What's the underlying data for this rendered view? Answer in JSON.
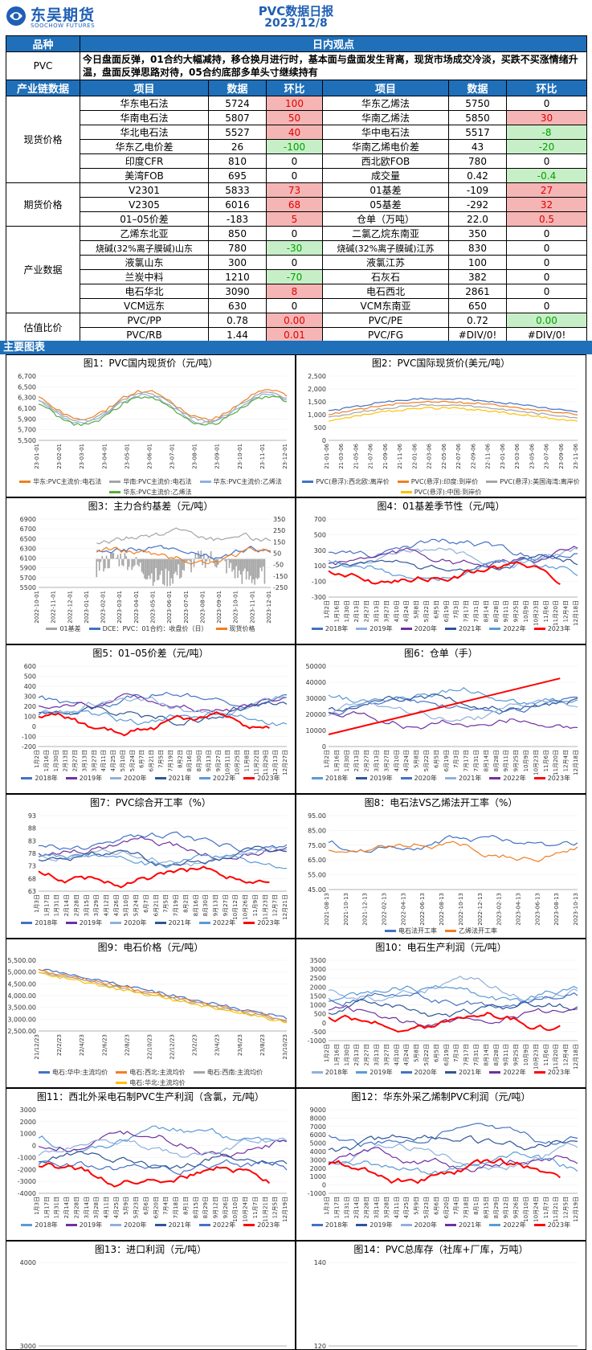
{
  "header": {
    "logo_cn": "东吴期货",
    "logo_en": "SOOCHOW FUTURES",
    "title": "PVC数据日报",
    "date": "2023/12/8"
  },
  "view": {
    "col1": "品种",
    "col2": "日内观点",
    "product": "PVC",
    "text": "今日盘面反弹，01合约大幅减持，移仓换月进行时，基本面与盘面发生背离，现货市场成交冷淡，买跌不买涨情绪升温，盘面反弹思路对待，05合约底部多单头寸继续持有"
  },
  "table_header": [
    "产业链数据",
    "项目",
    "数据",
    "环比",
    "项目",
    "数据",
    "环比"
  ],
  "sections": [
    {
      "name": "现货价格",
      "rows": [
        [
          "华东电石法",
          "5724",
          "100",
          "r",
          "华东乙烯法",
          "5750",
          "0",
          ""
        ],
        [
          "华南电石法",
          "5807",
          "50",
          "r",
          "华南乙烯法",
          "5850",
          "30",
          "r"
        ],
        [
          "华北电石法",
          "5527",
          "40",
          "r",
          "华中电石法",
          "5517",
          "-8",
          "g"
        ],
        [
          "华东乙电价差",
          "26",
          "-100",
          "g",
          "华南乙烯电价差",
          "43",
          "-20",
          "g"
        ],
        [
          "印度CFR",
          "810",
          "0",
          "",
          "西北欧FOB",
          "780",
          "0",
          ""
        ],
        [
          "美湾FOB",
          "695",
          "0",
          "",
          "成交量",
          "0.42",
          "-0.4",
          "g"
        ]
      ]
    },
    {
      "name": "期货价格",
      "rows": [
        [
          "V2301",
          "5833",
          "73",
          "r",
          "01基差",
          "-109",
          "27",
          "r"
        ],
        [
          "V2305",
          "6016",
          "68",
          "r",
          "05基差",
          "-292",
          "32",
          "r"
        ],
        [
          "01–05价差",
          "-183",
          "5",
          "r",
          "仓单（万吨）",
          "22.0",
          "0.5",
          "r"
        ]
      ]
    },
    {
      "name": "产业数据",
      "rows": [
        [
          "乙烯东北亚",
          "850",
          "0",
          "",
          "二氯乙烷东南亚",
          "350",
          "0",
          ""
        ],
        [
          "烧碱(32%离子膜碱)山东",
          "780",
          "-30",
          "g",
          "烧碱(32%离子膜碱)江苏",
          "830",
          "0",
          ""
        ],
        [
          "液氯山东",
          "300",
          "0",
          "",
          "液氯江苏",
          "100",
          "0",
          ""
        ],
        [
          "兰炭中料",
          "1210",
          "-70",
          "g",
          "石灰石",
          "382",
          "0",
          ""
        ],
        [
          "电石华北",
          "3090",
          "8",
          "r",
          "电石西北",
          "2861",
          "0",
          ""
        ],
        [
          "VCM远东",
          "630",
          "0",
          "",
          "VCM东南亚",
          "650",
          "0",
          ""
        ]
      ]
    },
    {
      "name": "估值比价",
      "rows": [
        [
          "PVC/PP",
          "0.78",
          "0.00",
          "r",
          "PVC/PE",
          "0.72",
          "0.00",
          "g"
        ],
        [
          "PVC/RB",
          "1.44",
          "0.01",
          "r",
          "PVC/FG",
          "#DIV/0!",
          "#DIV/0!",
          ""
        ]
      ]
    }
  ],
  "section_bar": "主要图表",
  "colors": {
    "brand": "#1f5fb4",
    "bar": "#1f6fb9",
    "up": "#e00000",
    "down": "#00a000"
  },
  "charts": [
    {
      "title": "图1：PVC国内现货价（元/吨）",
      "yticks": [
        "6,700",
        "6,500",
        "6,300",
        "6,100",
        "5,900",
        "5,700",
        "5,500"
      ],
      "xticks": [
        "23-01-01",
        "23-02-01",
        "23-03-01",
        "23-04-01",
        "23-05-01",
        "23-06-01",
        "23-07-01",
        "23-08-01",
        "23-09-01",
        "23-10-01",
        "23-11-01",
        "23-12-01"
      ],
      "legend": [
        {
          "name": "华东:PVC主流价:电石法",
          "color": "#f07f22"
        },
        {
          "name": "华南:PVC主流价:电石法",
          "color": "#a5a5a5"
        },
        {
          "name": "华东:PVC主流价:乙烯法",
          "color": "#8fb0dc"
        },
        {
          "name": "华东:PVC主流价:乙烯法",
          "color": "#5aab3c"
        }
      ]
    },
    {
      "title": "图2：PVC国际现货价(美元/吨）",
      "yticks": [
        "2,500",
        "2,000",
        "1,500",
        "1,000",
        "500",
        "0"
      ],
      "xticks": [
        "21-01-06",
        "21-03-06",
        "21-05-06",
        "21-07-06",
        "21-09-06",
        "21-11-06",
        "22-01-06",
        "22-03-06",
        "22-05-06",
        "22-07-06",
        "22-09-06",
        "22-11-06",
        "23-01-06",
        "23-03-06",
        "23-05-06",
        "23-07-06",
        "23-09-06",
        "23-11-06"
      ],
      "legend": [
        {
          "name": "PVC(悬浮):西北欧:离岸价",
          "color": "#4472c4"
        },
        {
          "name": "PVC(悬浮):印度:到岸价",
          "color": "#f07f22"
        },
        {
          "name": "PVC(悬浮):美国海湾:离岸价",
          "color": "#a5a5a5"
        },
        {
          "name": "PVC(悬浮):中国:到岸价",
          "color": "#ffc000"
        }
      ]
    },
    {
      "title": "图3：主力合约基差（元/吨）",
      "yticks": [
        "6900",
        "6700",
        "6500",
        "6300",
        "6100",
        "5900",
        "5700",
        "5500"
      ],
      "yticks2": [
        "350",
        "250",
        "150",
        "50",
        "-50",
        "-150",
        "-250"
      ],
      "xticks": [
        "2022-10-01",
        "2022-11-01",
        "2022-12-01",
        "2023-01-01",
        "2023-02-01",
        "2023-03-01",
        "2023-04-01",
        "2023-05-01",
        "2023-06-01",
        "2023-07-01",
        "2023-08-01",
        "2023-09-01",
        "2023-10-01",
        "2023-11-01",
        "2023-12-01"
      ],
      "legend": [
        {
          "name": "01基差",
          "color": "#a5a5a5"
        },
        {
          "name": "DCE：PVC：01合约：收盘价（日）",
          "color": "#4472c4"
        },
        {
          "name": "现货价格",
          "color": "#f07f22"
        }
      ]
    },
    {
      "title": "图4：01基差季节性（元/吨）",
      "yticks": [
        "700",
        "500",
        "300",
        "100",
        "-100",
        "-300"
      ],
      "xticks": [
        "1月2日",
        "1月16日",
        "1月30日",
        "2月13日",
        "2月27日",
        "3月13日",
        "3月27日",
        "4月10日",
        "4月24日",
        "5月8日",
        "5月22日",
        "6月5日",
        "6月19日",
        "7月3日",
        "7月17日",
        "7月31日",
        "8月14日",
        "8月28日",
        "9月11日",
        "9月25日",
        "10月9日",
        "10月23日",
        "11月6日",
        "11月20日",
        "12月4日",
        "12月18日"
      ],
      "legend": [
        {
          "name": "2018年",
          "color": "#4472c4"
        },
        {
          "name": "2019年",
          "color": "#8fb0dc"
        },
        {
          "name": "2020年",
          "color": "#7030a0"
        },
        {
          "name": "2021年",
          "color": "#2f5597"
        },
        {
          "name": "2022年",
          "color": "#5b9bd5"
        },
        {
          "name": "2023年",
          "color": "#ff0000"
        }
      ]
    },
    {
      "title": "图5：01–05价差（元/吨）",
      "yticks": [
        "600",
        "500",
        "400",
        "300",
        "200",
        "100",
        "0",
        "-100",
        "-200"
      ],
      "xticks": [
        "1月2日",
        "1月16日",
        "1月30日",
        "2月13日",
        "2月27日",
        "3月13日",
        "3月27日",
        "4月11日",
        "4月25日",
        "5月10日",
        "5月24日",
        "6月7日",
        "6月21日",
        "7月5日",
        "7月19日",
        "8月2日",
        "8月16日",
        "8月30日",
        "9月13日",
        "9月27日",
        "10月11日",
        "10月25日",
        "11月8日",
        "11月22日",
        "11月29日",
        "12月13日",
        "12月27日"
      ],
      "legend": [
        {
          "name": "2018年",
          "color": "#4472c4"
        },
        {
          "name": "2019年",
          "color": "#7030a0"
        },
        {
          "name": "2020年",
          "color": "#8fb0dc"
        },
        {
          "name": "2021年",
          "color": "#2f5597"
        },
        {
          "name": "2022年",
          "color": "#5b9bd5"
        },
        {
          "name": "2023年",
          "color": "#ff0000"
        }
      ]
    },
    {
      "title": "图6：仓单（手）",
      "yticks": [
        "50000",
        "40000",
        "30000",
        "20000",
        "10000",
        "0"
      ],
      "xticks": [
        "1月2日",
        "1月16日",
        "1月30日",
        "2月13日",
        "2月27日",
        "3月13日",
        "3月27日",
        "4月10日",
        "4月24日",
        "5月8日",
        "5月22日",
        "6月5日",
        "6月19日",
        "7月3日",
        "7月17日",
        "7月31日",
        "8月14日",
        "8月28日",
        "9月11日",
        "9月25日",
        "10月9日",
        "10月23日",
        "11月6日",
        "11月20日",
        "12月4日",
        "12月18日"
      ],
      "legend": [
        {
          "name": "2018年",
          "color": "#5b9bd5"
        },
        {
          "name": "2019年",
          "color": "#2f5597"
        },
        {
          "name": "2020年",
          "color": "#4472c4"
        },
        {
          "name": "2021年",
          "color": "#8fb0dc"
        },
        {
          "name": "2022年",
          "color": "#7030a0"
        },
        {
          "name": "2023年",
          "color": "#ff0000"
        }
      ]
    },
    {
      "title": "图7：PVC综合开工率（%）",
      "yticks": [
        "93",
        "88",
        "83",
        "78",
        "73",
        "68",
        "63"
      ],
      "xticks": [
        "1月3日",
        "1月17日",
        "1月31日",
        "2月14日",
        "2月28日",
        "3月15日",
        "3月29日",
        "4月12日",
        "4月26日",
        "5月10日",
        "5月24日",
        "6月7日",
        "6月21日",
        "7月5日",
        "7月19日",
        "8月2日",
        "8月16日",
        "8月30日",
        "9月13日",
        "9月27日",
        "10月12日",
        "10月26日",
        "11月9日",
        "11月23日",
        "12月7日",
        "12月21日"
      ],
      "legend": [
        {
          "name": "2018年",
          "color": "#4472c4"
        },
        {
          "name": "2019年",
          "color": "#7030a0"
        },
        {
          "name": "2020年",
          "color": "#8fb0dc"
        },
        {
          "name": "2021年",
          "color": "#2f5597"
        },
        {
          "name": "2022年",
          "color": "#5b9bd5"
        },
        {
          "name": "2023年",
          "color": "#ff0000"
        }
      ]
    },
    {
      "title": "图8：电石法VS乙烯法开工率（%）",
      "yticks": [
        "95.00",
        "85.00",
        "75.00",
        "65.00",
        "55.00",
        "45.00"
      ],
      "xticks": [
        "2021-08-13",
        "2021-10-13",
        "2021-12-13",
        "2022-02-13",
        "2022-04-13",
        "2022-06-13",
        "2022-08-13",
        "2022-10-13",
        "2022-12-13",
        "2023-02-13",
        "2023-04-13",
        "2023-06-13",
        "2023-08-13",
        "2023-10-13"
      ],
      "legend": [
        {
          "name": "电石法开工率",
          "color": "#4472c4"
        },
        {
          "name": "乙烯法开工率",
          "color": "#f07f22"
        }
      ]
    },
    {
      "title": "图9：电石价格（元/吨）",
      "yticks": [
        "5,500.00",
        "5,000.00",
        "4,500.00",
        "4,000.00",
        "3,500.00",
        "3,000.00",
        "2,500.00"
      ],
      "xticks": [
        "21/12/23",
        "22/2/23",
        "22/4/23",
        "22/6/23",
        "22/8/23",
        "22/10/23",
        "22/12/23",
        "23/2/23",
        "23/4/23",
        "23/6/23",
        "23/8/23",
        "23/10/23"
      ],
      "legend": [
        {
          "name": "电石:华中:主流均价",
          "color": "#4472c4"
        },
        {
          "name": "电石:西北:主流均价",
          "color": "#f07f22"
        },
        {
          "name": "电石:西南:主流均价",
          "color": "#a5a5a5"
        },
        {
          "name": "电石:华北:主流均价",
          "color": "#ffc000"
        }
      ]
    },
    {
      "title": "图10：电石生产利润（元/吨）",
      "yticks": [
        "3500",
        "3000",
        "2500",
        "2000",
        "1500",
        "1000",
        "500",
        "0",
        "-500",
        "-1000"
      ],
      "xticks": [
        "1月2日",
        "1月16日",
        "1月30日",
        "2月13日",
        "2月27日",
        "3月13日",
        "3月27日",
        "4月10日",
        "4月24日",
        "5月8日",
        "5月22日",
        "6月5日",
        "6月19日",
        "7月3日",
        "7月17日",
        "7月31日",
        "8月14日",
        "8月28日",
        "9月11日",
        "9月25日",
        "10月9日",
        "10月23日",
        "11月6日",
        "11月20日",
        "12月4日",
        "12月18日"
      ],
      "legend": [
        {
          "name": "2018年",
          "color": "#8fb0dc"
        },
        {
          "name": "2019年",
          "color": "#5b9bd5"
        },
        {
          "name": "2020年",
          "color": "#4472c4"
        },
        {
          "name": "2021年",
          "color": "#2f5597"
        },
        {
          "name": "2022年",
          "color": "#7030a0"
        },
        {
          "name": "2023年",
          "color": "#ff0000"
        }
      ]
    },
    {
      "title": "图11：西北外采电石制PVC生产利润（含氯，元/吨）",
      "yticks": [
        "3000",
        "2000",
        "1000",
        "0",
        "-1000",
        "-2000",
        "-3000",
        "-4000"
      ],
      "xticks": [
        "1月3日",
        "1月17日",
        "1月31日",
        "2月14日",
        "2月28日",
        "3月14日",
        "3月28日",
        "4月11日",
        "4月25日",
        "5月9日",
        "5月23日",
        "6月6日",
        "6月20日",
        "7月4日",
        "7月18日",
        "8月1日",
        "8月15日",
        "8月29日",
        "9月12日",
        "9月26日",
        "10月10日",
        "10月24日",
        "11月7日",
        "11月21日",
        "12月5日",
        "12月19日"
      ],
      "legend": [
        {
          "name": "2018年",
          "color": "#5b9bd5"
        },
        {
          "name": "2019年",
          "color": "#7030a0"
        },
        {
          "name": "2020年",
          "color": "#8fb0dc"
        },
        {
          "name": "2021年",
          "color": "#2f5597"
        },
        {
          "name": "2022年",
          "color": "#4472c4"
        },
        {
          "name": "2023年",
          "color": "#ff0000"
        }
      ]
    },
    {
      "title": "图12：华东外采乙烯制PVC利润（元/吨）",
      "yticks": [
        "9000",
        "8000",
        "7000",
        "6000",
        "5000",
        "4000",
        "3000",
        "2000",
        "1000",
        "0",
        "-1000"
      ],
      "xticks": [
        "1月3日",
        "1月17日",
        "1月31日",
        "2月14日",
        "2月28日",
        "3月14日",
        "3月28日",
        "4月11日",
        "4月25日",
        "5月9日",
        "5月23日",
        "6月6日",
        "6月20日",
        "7月4日",
        "7月18日",
        "8月1日",
        "8月15日",
        "8月29日",
        "9月12日",
        "9月26日",
        "10月10日",
        "10月24日",
        "11月7日",
        "11月21日",
        "12月5日",
        "12月19日"
      ],
      "legend": [
        {
          "name": "2018年",
          "color": "#4472c4"
        },
        {
          "name": "2019年",
          "color": "#2f5597"
        },
        {
          "name": "2020年",
          "color": "#8fb0dc"
        },
        {
          "name": "2021年",
          "color": "#7030a0"
        },
        {
          "name": "2022年",
          "color": "#5b9bd5"
        },
        {
          "name": "2023年",
          "color": "#ff0000"
        }
      ]
    },
    {
      "title": "图13：进口利润（元/吨）",
      "yticks": [
        "4000",
        "3000"
      ],
      "xticks": [],
      "legend": []
    },
    {
      "title": "图14：PVC总库存（社库+厂库，万吨）",
      "yticks": [
        "140",
        "120"
      ],
      "xticks": [],
      "legend": []
    }
  ]
}
